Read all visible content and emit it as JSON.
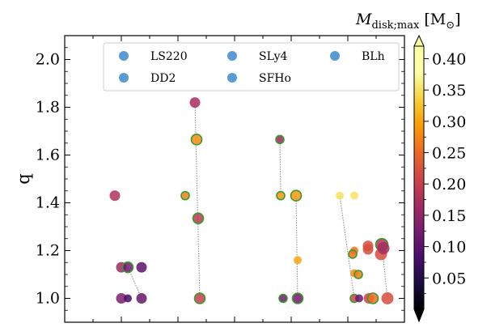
{
  "chart_data": {
    "type": "scatter",
    "xlabel": "",
    "ylabel": "q",
    "ylim": [
      0.9,
      2.1
    ],
    "yticks": [
      1.0,
      1.2,
      1.4,
      1.6,
      1.8,
      2.0
    ],
    "ytick_labels": [
      "1.0",
      "1.2",
      "1.4",
      "1.6",
      "1.8",
      "2.0"
    ],
    "legend": {
      "placement": "top-center",
      "columns": 3,
      "entries": [
        "LS220",
        "SLy4",
        "BLh",
        "DD2",
        "SFHo"
      ],
      "marker_color": "#5b9bd5"
    },
    "colorbar": {
      "title_main": "M",
      "title_sub": "disk;max",
      "title_unit": "[M",
      "title_unit_sub": "⊙",
      "title_close": "]",
      "min": 0.0,
      "max": 0.42,
      "ticks": [
        0.05,
        0.1,
        0.15,
        0.2,
        0.25,
        0.3,
        0.35,
        0.4
      ],
      "tick_labels": [
        "0.05",
        "0.10",
        "0.15",
        "0.20",
        "0.25",
        "0.30",
        "0.35",
        "0.40"
      ],
      "colormap": "inferno-like",
      "extend": "both"
    },
    "groups": [
      {
        "name": "LS220",
        "points": [
          {
            "q": 1.43,
            "mdisk": 0.18,
            "size": "medium",
            "edge": false
          },
          {
            "q": 1.13,
            "mdisk": 0.16,
            "size": "medium",
            "edge": false
          },
          {
            "q": 1.0,
            "mdisk": 0.13,
            "size": "medium",
            "edge": false
          },
          {
            "q": 1.13,
            "mdisk": 0.12,
            "size": "medium",
            "edge": true
          },
          {
            "q": 1.0,
            "mdisk": 0.08,
            "size": "small",
            "edge": false
          },
          {
            "q": 1.13,
            "mdisk": 0.1,
            "size": "medium",
            "edge": false
          },
          {
            "q": 1.0,
            "mdisk": 0.11,
            "size": "medium",
            "edge": false
          }
        ]
      },
      {
        "name": "DD2",
        "points": [
          {
            "q": 1.82,
            "mdisk": 0.17,
            "size": "medium",
            "edge": false
          },
          {
            "q": 1.43,
            "mdisk": 0.27,
            "size": "small",
            "edge": true
          },
          {
            "q": 1.665,
            "mdisk": 0.28,
            "size": "medium",
            "edge": true
          },
          {
            "q": 1.335,
            "mdisk": 0.19,
            "size": "medium",
            "edge": true
          },
          {
            "q": 1.0,
            "mdisk": 0.2,
            "size": "medium",
            "edge": true
          }
        ]
      },
      {
        "name": "SLy4",
        "points": [
          {
            "q": 1.665,
            "mdisk": 0.16,
            "size": "small",
            "edge": true
          },
          {
            "q": 1.43,
            "mdisk": 0.29,
            "size": "small",
            "edge": true
          },
          {
            "q": 1.43,
            "mdisk": 0.29,
            "size": "medium",
            "edge": true
          },
          {
            "q": 1.16,
            "mdisk": 0.3,
            "size": "small",
            "edge": false
          },
          {
            "q": 1.0,
            "mdisk": 0.12,
            "size": "small",
            "edge": true
          },
          {
            "q": 1.0,
            "mdisk": 0.12,
            "size": "medium",
            "edge": true
          }
        ]
      },
      {
        "name": "SFHo",
        "points": [
          {
            "q": 1.43,
            "mdisk": 0.35,
            "size": "small",
            "edge": false
          },
          {
            "q": 1.43,
            "mdisk": 0.35,
            "size": "small",
            "edge": false
          },
          {
            "q": 1.2,
            "mdisk": 0.26,
            "size": "small",
            "edge": false
          },
          {
            "q": 1.185,
            "mdisk": 0.26,
            "size": "small",
            "edge": true
          },
          {
            "q": 1.105,
            "mdisk": 0.28,
            "size": "small",
            "edge": false
          },
          {
            "q": 1.1,
            "mdisk": 0.27,
            "size": "small",
            "edge": true
          },
          {
            "q": 1.0,
            "mdisk": 0.21,
            "size": "small",
            "edge": true
          },
          {
            "q": 1.0,
            "mdisk": 0.11,
            "size": "small",
            "edge": false
          }
        ]
      },
      {
        "name": "BLh",
        "points": [
          {
            "q": 1.22,
            "mdisk": 0.22,
            "size": "medium",
            "edge": false
          },
          {
            "q": 1.205,
            "mdisk": 0.22,
            "size": "medium",
            "edge": false
          },
          {
            "q": 1.185,
            "mdisk": 0.22,
            "size": "large",
            "edge": false
          },
          {
            "q": 1.225,
            "mdisk": 0.18,
            "size": "large",
            "edge": true
          },
          {
            "q": 1.21,
            "mdisk": 0.17,
            "size": "large",
            "edge": false
          },
          {
            "q": 1.0,
            "mdisk": 0.21,
            "size": "medium",
            "edge": false
          },
          {
            "q": 1.0,
            "mdisk": 0.26,
            "size": "medium",
            "edge": true
          },
          {
            "q": 1.0,
            "mdisk": 0.22,
            "size": "large",
            "edge": false
          }
        ]
      }
    ],
    "connectors": [
      {
        "group": "LS220",
        "from": 3,
        "to": 6
      },
      {
        "group": "DD2",
        "from": 0,
        "to": 4
      },
      {
        "group": "SLy4",
        "from": 0,
        "to": 1
      },
      {
        "group": "SLy4",
        "from": 2,
        "to": 5
      },
      {
        "group": "SFHo",
        "from": 0,
        "to": 6
      },
      {
        "group": "BLh",
        "from": 3,
        "to": 7
      }
    ],
    "edge_color": "#3a9a2e",
    "connector_color": "#888888"
  }
}
